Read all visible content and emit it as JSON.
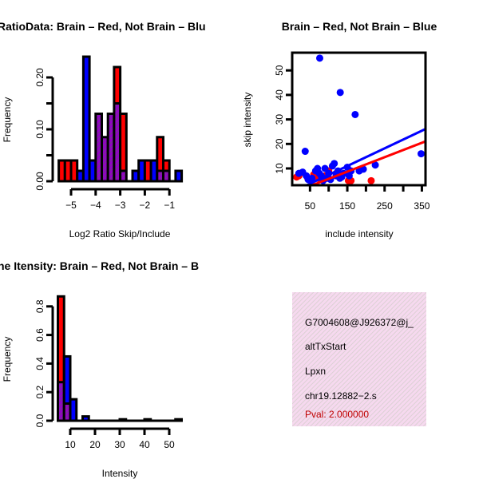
{
  "colors": {
    "brain": "#ff0000",
    "not_brain": "#0000ff",
    "overlap": "#9400c8",
    "pval": "#c00000",
    "info_bg": "#f6d9ef"
  },
  "chart_data": [
    {
      "type": "bar",
      "title": "RatioData: Brain – Red, Not Brain – Blu",
      "xlabel": "Log2 Ratio Skip/Include",
      "ylabel": "Frequency",
      "bin_start": -5.5,
      "bin_width": 0.25,
      "xticks": [
        -5,
        -4,
        -3,
        -2,
        -1
      ],
      "xtick_labels": [
        "−5",
        "−4",
        "−3",
        "−2",
        "−1"
      ],
      "yticks": [
        0,
        0.05,
        0.1,
        0.15,
        0.2
      ],
      "ytick_labels": [
        "0.00",
        "",
        "0.10",
        "",
        "0.20"
      ],
      "series": [
        {
          "name": "Brain",
          "values": [
            0.04,
            0.04,
            0.04,
            0,
            0,
            0,
            0.13,
            0.085,
            0.13,
            0.22,
            0.13,
            0,
            0,
            0,
            0.04,
            0,
            0.085,
            0.04,
            0,
            0
          ]
        },
        {
          "name": "Not Brain",
          "values": [
            0,
            0,
            0,
            0.02,
            0.24,
            0.04,
            0.13,
            0.085,
            0.13,
            0.15,
            0.02,
            0,
            0.02,
            0.04,
            0,
            0.04,
            0.02,
            0.02,
            0,
            0.02
          ]
        }
      ]
    },
    {
      "type": "scatter",
      "title": "Brain – Red, Not Brain – Blue",
      "xlabel": "include intensity",
      "ylabel": "skip intensity",
      "xlim": [
        0,
        360
      ],
      "ylim": [
        3,
        57
      ],
      "xticks": [
        50,
        100,
        150,
        200,
        250,
        300,
        350
      ],
      "xtick_labels": [
        "50",
        "",
        "150",
        "",
        "250",
        "",
        "350"
      ],
      "yticks": [
        10,
        20,
        30,
        40,
        50
      ],
      "ytick_labels": [
        "10",
        "20",
        "30",
        "40",
        "50"
      ],
      "series": [
        {
          "name": "Brain",
          "points": [
            [
              14,
              6.5
            ],
            [
              20,
              7
            ],
            [
              44,
              6
            ],
            [
              55,
              5
            ],
            [
              70,
              6
            ],
            [
              90,
              7
            ],
            [
              120,
              8
            ],
            [
              153,
              5
            ],
            [
              160,
              5
            ],
            [
              214,
              5
            ],
            [
              100,
              9
            ],
            [
              60,
              7.5
            ]
          ],
          "fit": {
            "intercept": 0.0,
            "slope": 0.0588,
            "x0": 53,
            "y0": 3
          }
        },
        {
          "name": "Not Brain",
          "points": [
            [
              76,
              55
            ],
            [
              131,
              41
            ],
            [
              171,
              32
            ],
            [
              37,
              17
            ],
            [
              348,
              16
            ],
            [
              225,
              11.4
            ],
            [
              193,
              9.7
            ],
            [
              182,
              9
            ],
            [
              20,
              8
            ],
            [
              30,
              8.5
            ],
            [
              40,
              7
            ],
            [
              55,
              6
            ],
            [
              65,
              9
            ],
            [
              75,
              8
            ],
            [
              80,
              7
            ],
            [
              90,
              10
            ],
            [
              95,
              6
            ],
            [
              100,
              8
            ],
            [
              110,
              11
            ],
            [
              115,
              12
            ],
            [
              120,
              7
            ],
            [
              125,
              9
            ],
            [
              130,
              6
            ],
            [
              140,
              8
            ],
            [
              150,
              10.5
            ],
            [
              155,
              7
            ],
            [
              160,
              9
            ],
            [
              45,
              5.5
            ],
            [
              85,
              5
            ],
            [
              105,
              5.5
            ],
            [
              135,
              6.5
            ],
            [
              70,
              10
            ]
          ],
          "fit": {
            "slope": 0.072,
            "x0": 39,
            "y0": 3
          }
        }
      ]
    },
    {
      "type": "bar",
      "title": "ne Itensity: Brain – Red, Not Brain – B",
      "xlabel": "Intensity",
      "ylabel": "Frequency",
      "bin_start": 5,
      "bin_width": 2.5,
      "xticks": [
        10,
        20,
        30,
        40,
        50
      ],
      "xtick_labels": [
        "10",
        "20",
        "30",
        "40",
        "50"
      ],
      "yticks": [
        0,
        0.2,
        0.4,
        0.6,
        0.8
      ],
      "ytick_labels": [
        "0.0",
        "0.2",
        "0.4",
        "0.6",
        "0.8"
      ],
      "series": [
        {
          "name": "Brain",
          "values": [
            0.87,
            0.12,
            0,
            0,
            0,
            0,
            0,
            0,
            0,
            0,
            0,
            0,
            0,
            0,
            0,
            0,
            0,
            0,
            0,
            0
          ]
        },
        {
          "name": "Not Brain",
          "values": [
            0.27,
            0.45,
            0.15,
            0,
            0.03,
            0,
            0,
            0,
            0,
            0,
            0.01,
            0,
            0,
            0,
            0.01,
            0,
            0,
            0,
            0,
            0.01
          ]
        }
      ]
    }
  ],
  "info": {
    "id": "G7004608@J926372@j_",
    "event": "altTxStart",
    "gene": "Lpxn",
    "location": "chr19.12882−2.s",
    "pval": "Pval: 2.000000"
  }
}
